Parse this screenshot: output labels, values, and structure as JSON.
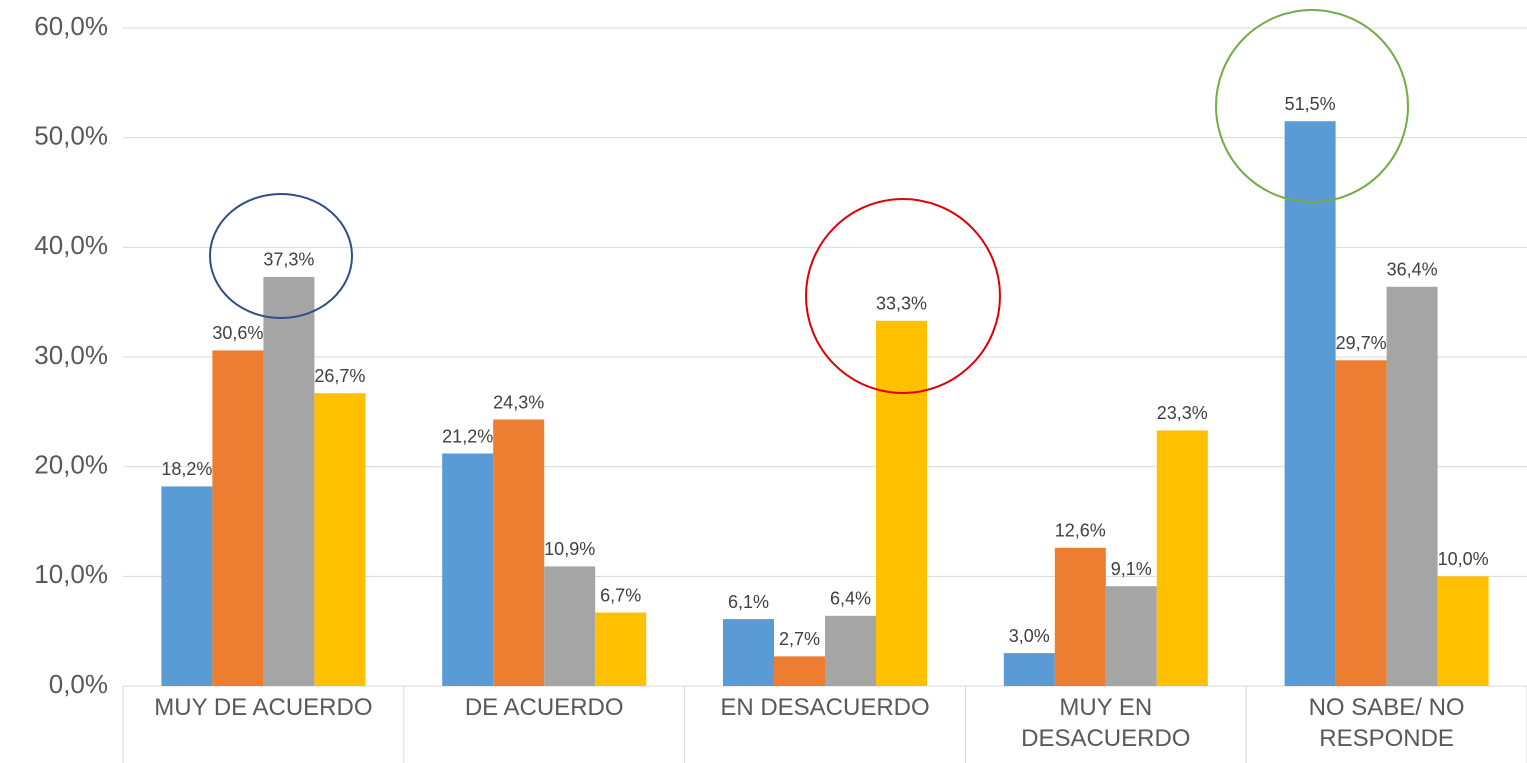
{
  "chart_data": {
    "type": "bar",
    "categories": [
      "MUY DE ACUERDO",
      "DE ACUERDO",
      "EN DESACUERDO",
      "MUY EN DESACUERDO",
      "NO SABE/ NO RESPONDE"
    ],
    "series": [
      {
        "color": "#5b9bd5",
        "values": [
          18.2,
          21.2,
          6.1,
          3.0,
          51.5
        ],
        "value_labels": [
          "18,2%",
          "21,2%",
          "6,1%",
          "3,0%",
          "51,5%"
        ]
      },
      {
        "color": "#ed7d31",
        "values": [
          30.6,
          24.3,
          2.7,
          12.6,
          29.7
        ],
        "value_labels": [
          "30,6%",
          "24,3%",
          "2,7%",
          "12,6%",
          "29,7%"
        ]
      },
      {
        "color": "#a5a5a5",
        "values": [
          37.3,
          10.9,
          6.4,
          9.1,
          36.4
        ],
        "value_labels": [
          "37,3%",
          "10,9%",
          "6,4%",
          "9,1%",
          "36,4%"
        ]
      },
      {
        "color": "#ffc000",
        "values": [
          26.7,
          6.7,
          33.3,
          23.3,
          10.0
        ],
        "value_labels": [
          "26,7%",
          "6,7%",
          "33,3%",
          "23,3%",
          "10,0%"
        ]
      }
    ],
    "ylim": [
      0,
      60
    ],
    "yticks": [
      {
        "value": 0,
        "label": "0,0%"
      },
      {
        "value": 10,
        "label": "10,0%"
      },
      {
        "value": 20,
        "label": "20,0%"
      },
      {
        "value": 30,
        "label": "30,0%"
      },
      {
        "value": 40,
        "label": "40,0%"
      },
      {
        "value": 50,
        "label": "50,0%"
      },
      {
        "value": 60,
        "label": "60,0%"
      }
    ],
    "grid": true
  }
}
